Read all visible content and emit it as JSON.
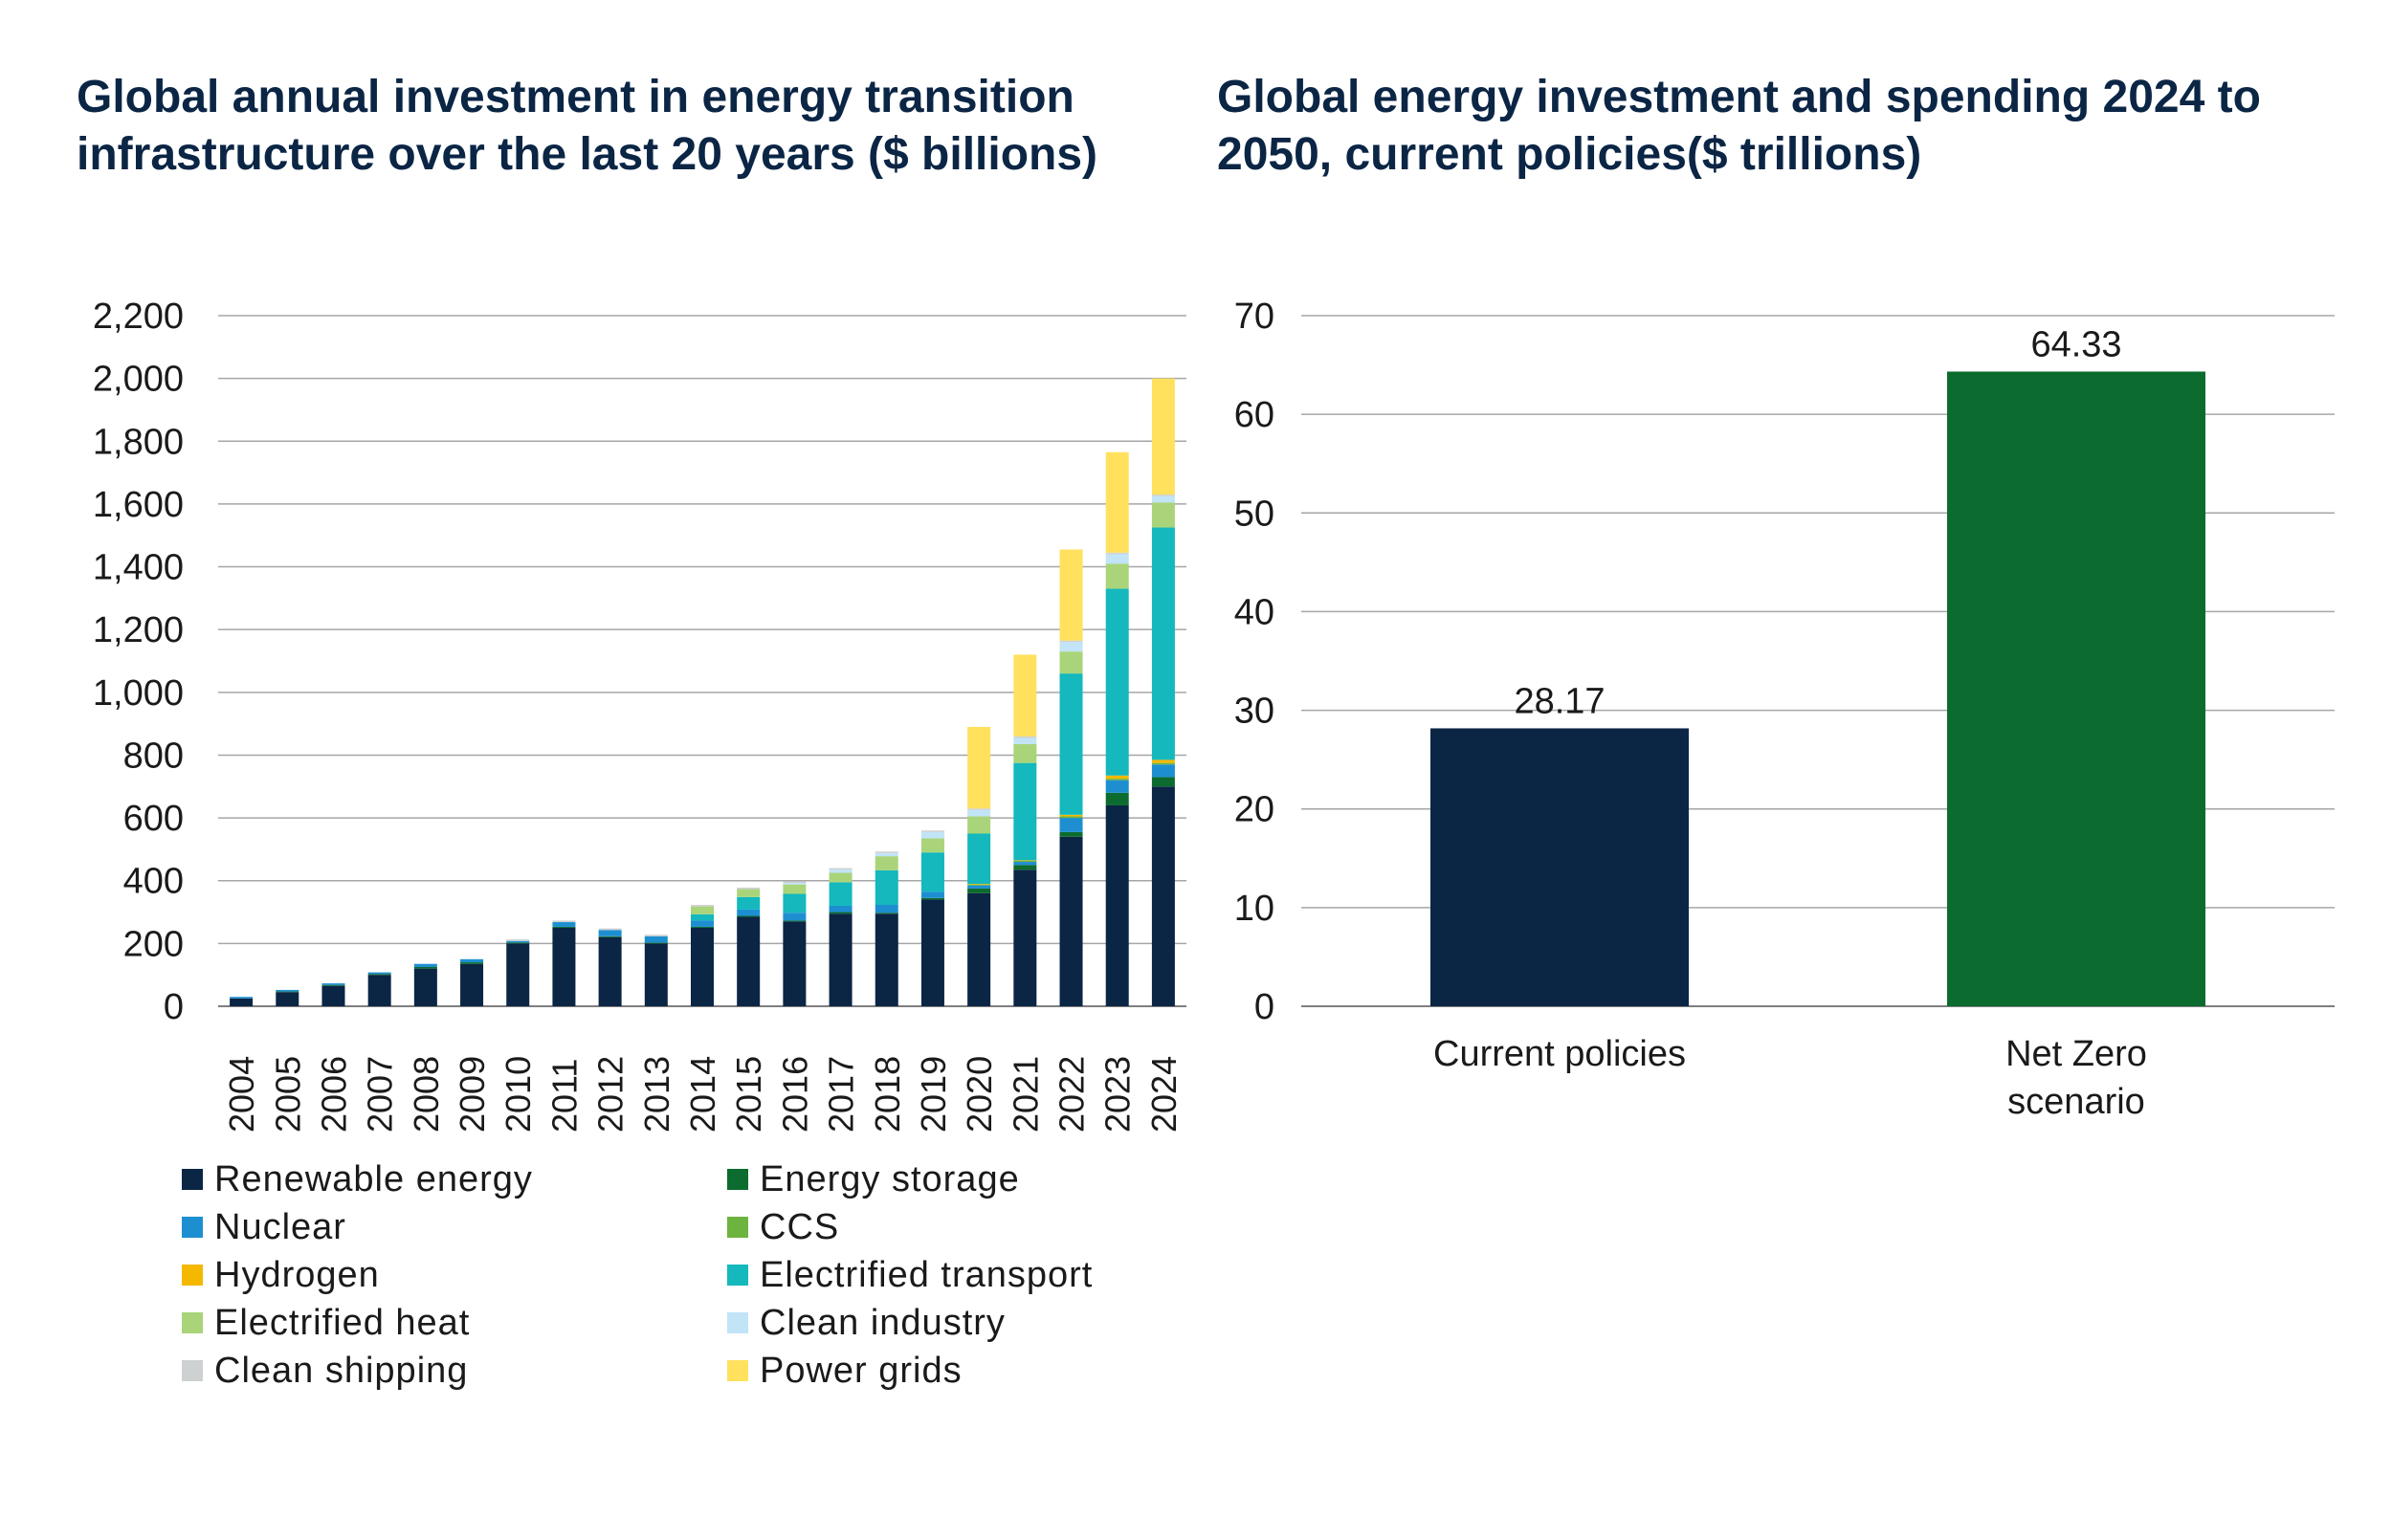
{
  "chart_data": [
    {
      "type": "bar",
      "stacked": true,
      "title": "Global annual investment in energy transition infrastructure over the last 20 years ($ billions)",
      "categories": [
        "2004",
        "2005",
        "2006",
        "2007",
        "2008",
        "2009",
        "2010",
        "2011",
        "2012",
        "2013",
        "2014",
        "2015",
        "2016",
        "2017",
        "2018",
        "2019",
        "2020",
        "2021",
        "2022",
        "2023",
        "2024"
      ],
      "ylim": [
        0,
        2200
      ],
      "yticks": [
        0,
        200,
        400,
        600,
        800,
        1000,
        1200,
        1400,
        1600,
        1800,
        2000,
        2200
      ],
      "ytick_labels": [
        "0",
        "200",
        "400",
        "600",
        "800",
        "1,000",
        "1,200",
        "1,400",
        "1,600",
        "1,800",
        "2,000",
        "2,200"
      ],
      "grid": true,
      "legend_position": "bottom",
      "series": [
        {
          "name": "Renewable energy",
          "color": "#0b2545",
          "values": [
            25,
            45,
            65,
            100,
            120,
            135,
            200,
            250,
            220,
            200,
            250,
            285,
            270,
            295,
            295,
            340,
            360,
            435,
            540,
            640,
            700
          ]
        },
        {
          "name": "Energy storage",
          "color": "#0c6b2e",
          "values": [
            0,
            2,
            3,
            3,
            5,
            5,
            3,
            3,
            3,
            3,
            3,
            3,
            3,
            5,
            3,
            5,
            15,
            15,
            15,
            40,
            30
          ]
        },
        {
          "name": "Nuclear",
          "color": "#1d8fd1",
          "values": [
            5,
            5,
            5,
            5,
            10,
            10,
            5,
            15,
            20,
            20,
            20,
            20,
            25,
            20,
            25,
            20,
            10,
            10,
            45,
            40,
            40
          ]
        },
        {
          "name": "CCS",
          "color": "#6db33f",
          "values": [
            0,
            0,
            0,
            0,
            0,
            0,
            0,
            0,
            0,
            0,
            0,
            0,
            0,
            0,
            0,
            0,
            3,
            3,
            5,
            5,
            5
          ]
        },
        {
          "name": "Hydrogen",
          "color": "#f5b800",
          "values": [
            0,
            0,
            0,
            0,
            0,
            0,
            0,
            0,
            0,
            0,
            0,
            0,
            0,
            0,
            0,
            0,
            2,
            2,
            5,
            10,
            10
          ]
        },
        {
          "name": "Electrified transport",
          "color": "#14b8bd",
          "values": [
            0,
            0,
            0,
            0,
            0,
            0,
            0,
            0,
            0,
            0,
            20,
            40,
            60,
            75,
            110,
            125,
            160,
            310,
            450,
            595,
            740
          ]
        },
        {
          "name": "Electrified heat",
          "color": "#a9d479",
          "values": [
            0,
            0,
            0,
            0,
            0,
            0,
            0,
            0,
            0,
            0,
            25,
            25,
            30,
            30,
            45,
            45,
            55,
            60,
            70,
            80,
            80
          ]
        },
        {
          "name": "Clean industry",
          "color": "#c1e4f7",
          "values": [
            0,
            0,
            0,
            0,
            0,
            0,
            0,
            0,
            0,
            0,
            0,
            0,
            5,
            10,
            10,
            20,
            20,
            20,
            30,
            30,
            20
          ]
        },
        {
          "name": "Clean shipping",
          "color": "#cdd1d2",
          "values": [
            0,
            0,
            0,
            0,
            0,
            0,
            5,
            5,
            5,
            5,
            5,
            5,
            5,
            5,
            5,
            5,
            5,
            5,
            5,
            5,
            5
          ]
        },
        {
          "name": "Power grids",
          "color": "#ffe15e",
          "values": [
            0,
            0,
            0,
            0,
            0,
            0,
            0,
            0,
            0,
            0,
            0,
            0,
            0,
            0,
            0,
            0,
            260,
            260,
            290,
            320,
            370
          ]
        }
      ]
    },
    {
      "type": "bar",
      "title": "Global energy investment and spending 2024 to 2050, current policies($ trillions)",
      "categories": [
        "Current policies",
        "Net Zero scenario"
      ],
      "category_lines": [
        [
          "Current policies"
        ],
        [
          "Net Zero",
          "scenario"
        ]
      ],
      "values": [
        28.17,
        64.33
      ],
      "value_labels": [
        "28.17",
        "64.33"
      ],
      "colors": [
        "#0b2545",
        "#0c6b2e"
      ],
      "ylim": [
        0,
        70
      ],
      "yticks": [
        0,
        10,
        20,
        30,
        40,
        50,
        60,
        70
      ],
      "ytick_labels": [
        "0",
        "10",
        "20",
        "30",
        "40",
        "50",
        "60",
        "70"
      ],
      "grid": true
    }
  ]
}
